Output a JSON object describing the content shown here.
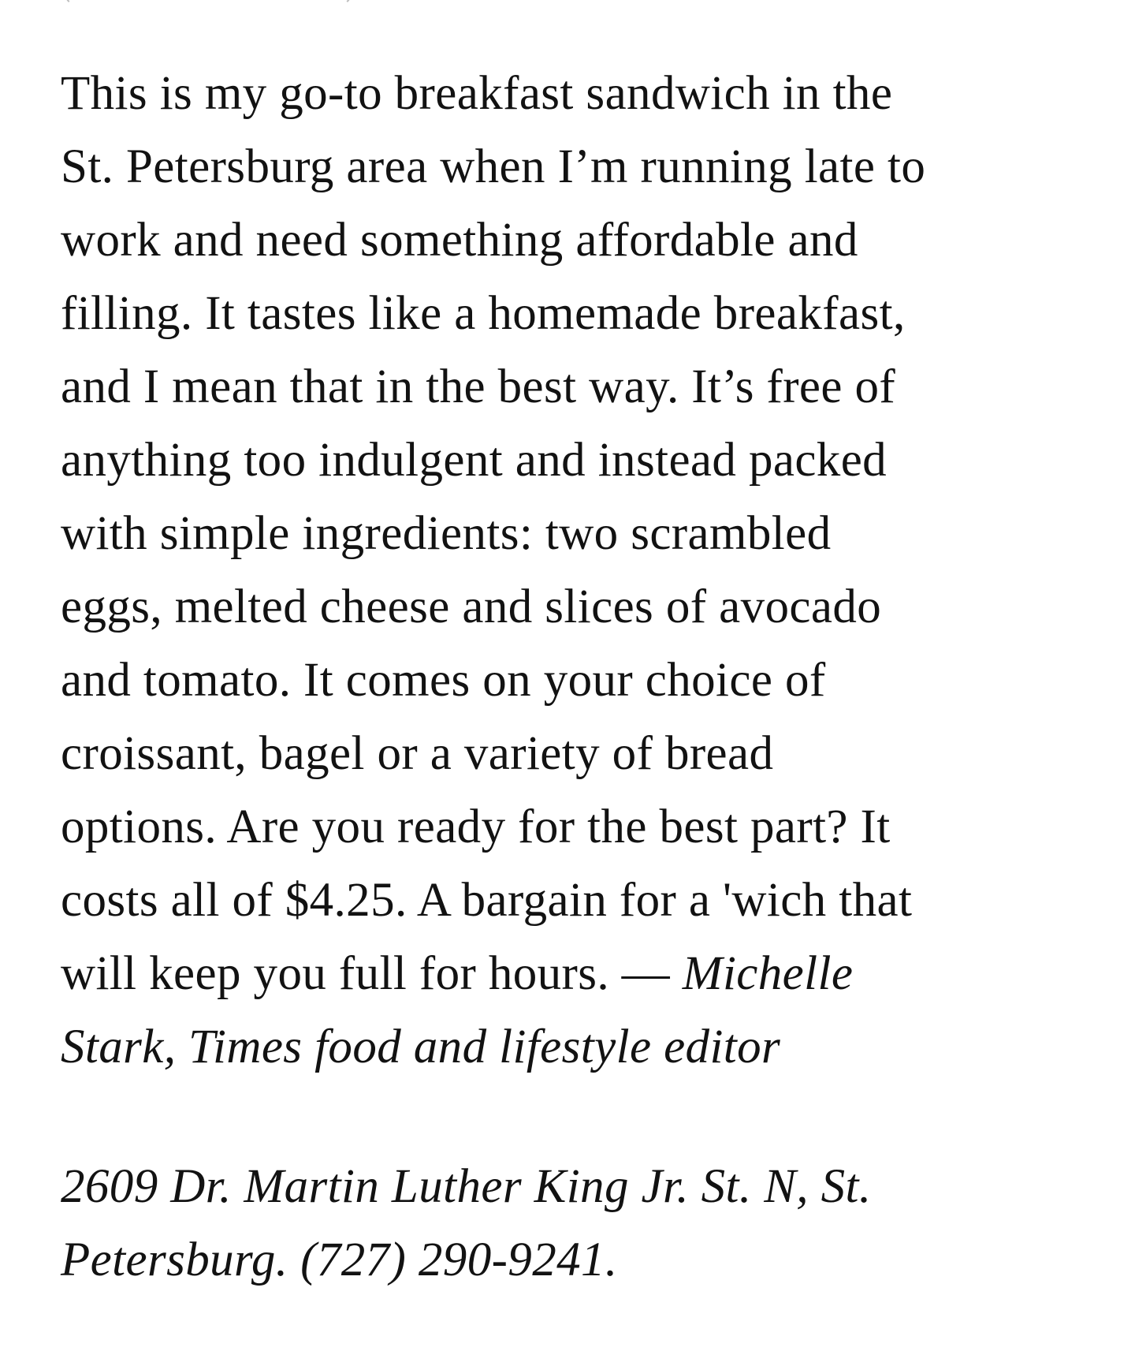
{
  "body": {
    "lines": [
      "This is my go-to breakfast sandwich in the",
      "St. Petersburg area when I’m running late to",
      "work and need something affordable and",
      "filling. It tastes like a homemade breakfast,",
      "and I mean that in the best way. It’s free of",
      "anything too indulgent and instead packed",
      "with simple ingredients: two scrambled",
      "eggs, melted cheese and slices of avocado",
      "and tomato. It comes on your choice of",
      "croissant, bagel or a variety of bread",
      "options. Are you ready for the best part? It",
      "costs all of $4.25. A bargain for a 'wich that"
    ],
    "last_line_roman": "will keep you full for hours. — ",
    "byline_part1": "Michelle",
    "byline_part2": "Stark, Times food and lifestyle editor"
  },
  "address": {
    "line1": "2609 Dr. Martin Luther King Jr. St. N, St.",
    "line2": "Petersburg. (727) 290-9241."
  }
}
